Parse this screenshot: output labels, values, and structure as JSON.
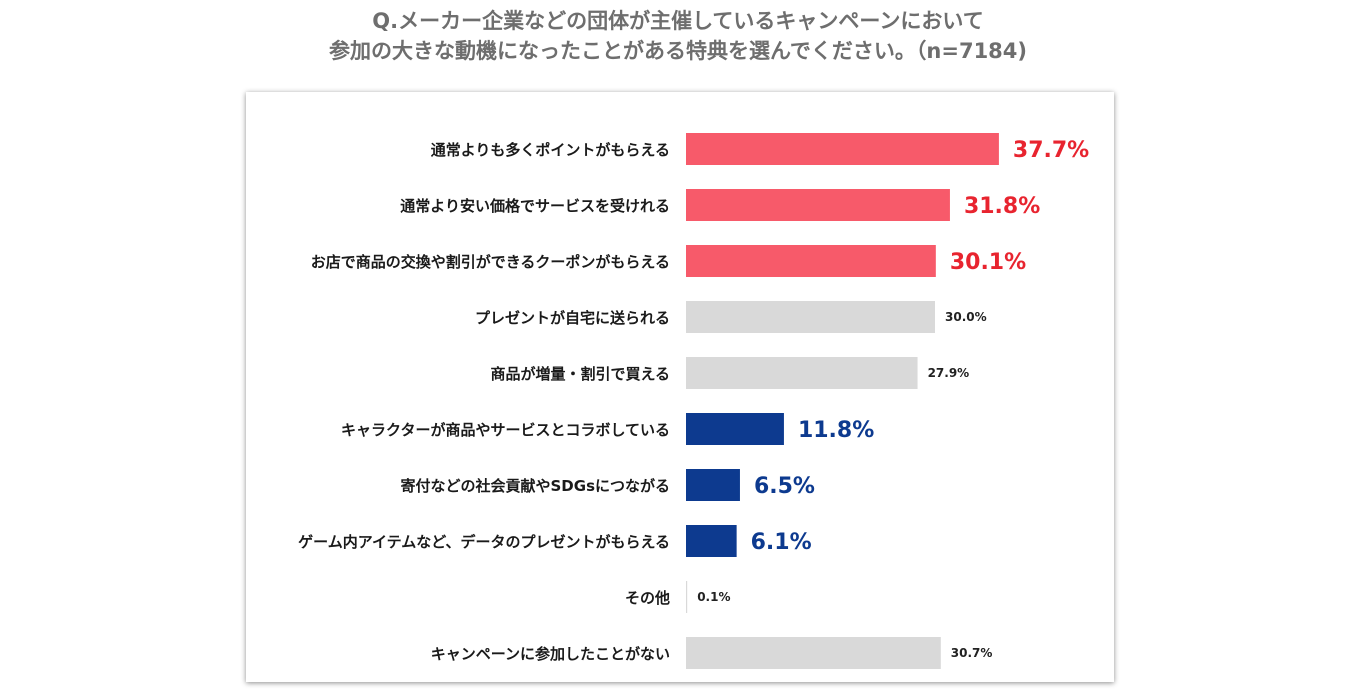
{
  "chart_data": {
    "type": "bar",
    "orientation": "horizontal",
    "title_lines": [
      "Q.メーカー企業などの団体が主催しているキャンペーンにおいて",
      "参加の大きな動機になったことがある特典を選んでください。（n=7184)"
    ],
    "unit": "%",
    "xlim": [
      0,
      40
    ],
    "categories": [
      "通常よりも多くポイントがもらえる",
      "通常より安い価格でサービスを受けれる",
      "お店で商品の交換や割引ができるクーポンがもらえる",
      "プレゼントが自宅に送られる",
      "商品が増量・割引で買える",
      "キャラクターが商品やサービスとコラボしている",
      "寄付などの社会貢献やSDGsにつながる",
      "ゲーム内アイテムなど、データのプレゼントがもらえる",
      "その他",
      "キャンペーンに参加したことがない"
    ],
    "values": [
      37.7,
      31.8,
      30.1,
      30.0,
      27.9,
      11.8,
      6.5,
      6.1,
      0.1,
      30.7
    ],
    "value_labels": [
      "37.7%",
      "31.8%",
      "30.1%",
      "30.0%",
      "27.9%",
      "11.8%",
      "6.5%",
      "6.1%",
      "0.1%",
      "30.7%"
    ],
    "bar_groups": [
      "red",
      "red",
      "red",
      "gray",
      "gray",
      "blue",
      "blue",
      "blue",
      "gray",
      "gray"
    ],
    "colors": {
      "red_bar": "#f75a6a",
      "red_label": "#e8242f",
      "blue_bar": "#0d3a8f",
      "blue_label": "#0d3a8f",
      "gray_bar": "#d9d9d9",
      "gray_label": "#222222"
    }
  }
}
